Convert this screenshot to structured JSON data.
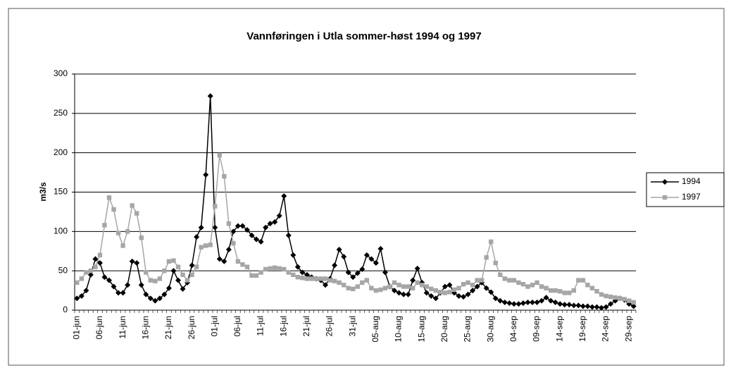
{
  "chart_data": {
    "type": "line",
    "title": "Vannføringen i Utla sommer-høst 1994 og 1997",
    "y_label": "m3/s",
    "categories": [
      "01-jun",
      null,
      null,
      null,
      null,
      "06-jun",
      null,
      null,
      null,
      null,
      "11-jun",
      null,
      null,
      null,
      null,
      "16-jun",
      null,
      null,
      null,
      null,
      "21-jun",
      null,
      null,
      null,
      null,
      "26-jun",
      null,
      null,
      null,
      null,
      "01-jul",
      null,
      null,
      null,
      null,
      "06-jul",
      null,
      null,
      null,
      null,
      "11-jul",
      null,
      null,
      null,
      null,
      "16-jul",
      null,
      null,
      null,
      null,
      "21-jul",
      null,
      null,
      null,
      null,
      "26-jul",
      null,
      null,
      null,
      null,
      "31-jul",
      null,
      null,
      null,
      null,
      "05-aug",
      null,
      null,
      null,
      null,
      "10-aug",
      null,
      null,
      null,
      null,
      "15-aug",
      null,
      null,
      null,
      null,
      "20-aug",
      null,
      null,
      null,
      null,
      "25-aug",
      null,
      null,
      null,
      null,
      "30-aug",
      null,
      null,
      null,
      null,
      "04-sep",
      null,
      null,
      null,
      null,
      "09-sep",
      null,
      null,
      null,
      null,
      "14-sep",
      null,
      null,
      null,
      null,
      "19-sep",
      null,
      null,
      null,
      null,
      "24-sep",
      null,
      null,
      null,
      null,
      "29-sep",
      null
    ],
    "series": [
      {
        "name": "1994",
        "color": "#000000",
        "marker": "diamond",
        "values": [
          15,
          18,
          25,
          45,
          65,
          60,
          42,
          38,
          30,
          22,
          22,
          32,
          62,
          60,
          32,
          20,
          15,
          12,
          15,
          20,
          28,
          50,
          38,
          27,
          35,
          57,
          93,
          105,
          172,
          272,
          105,
          65,
          62,
          77,
          100,
          107,
          107,
          102,
          95,
          90,
          87,
          105,
          110,
          112,
          120,
          145,
          95,
          70,
          55,
          48,
          45,
          42,
          40,
          38,
          32,
          40,
          57,
          77,
          68,
          48,
          42,
          47,
          52,
          70,
          65,
          60,
          78,
          48,
          30,
          25,
          22,
          20,
          20,
          38,
          53,
          35,
          22,
          18,
          15,
          22,
          30,
          32,
          22,
          18,
          17,
          20,
          25,
          30,
          35,
          28,
          23,
          15,
          12,
          10,
          9,
          8,
          8,
          9,
          10,
          10,
          10,
          12,
          16,
          12,
          10,
          8,
          7,
          7,
          6,
          6,
          5,
          5,
          4,
          4,
          3,
          4,
          8,
          12,
          15,
          13,
          8,
          5
        ]
      },
      {
        "name": "1997",
        "color": "#a6a6a6",
        "marker": "square",
        "values": [
          35,
          40,
          48,
          50,
          55,
          70,
          108,
          143,
          128,
          98,
          82,
          100,
          133,
          123,
          92,
          48,
          38,
          37,
          40,
          50,
          62,
          63,
          55,
          45,
          38,
          45,
          55,
          80,
          82,
          83,
          132,
          197,
          170,
          110,
          85,
          62,
          58,
          55,
          44,
          44,
          48,
          52,
          53,
          54,
          53,
          52,
          48,
          45,
          42,
          41,
          40,
          40,
          40,
          40,
          40,
          38,
          37,
          35,
          32,
          28,
          27,
          30,
          35,
          38,
          28,
          25,
          26,
          28,
          30,
          35,
          32,
          30,
          30,
          28,
          35,
          32,
          30,
          27,
          25,
          23,
          22,
          23,
          26,
          28,
          33,
          35,
          32,
          38,
          38,
          67,
          87,
          60,
          45,
          40,
          38,
          38,
          35,
          33,
          30,
          32,
          35,
          30,
          28,
          25,
          25,
          24,
          22,
          22,
          25,
          38,
          38,
          32,
          28,
          24,
          20,
          18,
          17,
          16,
          15,
          14,
          12,
          10
        ]
      }
    ],
    "ylim": [
      0,
      300
    ],
    "yticks": [
      0,
      50,
      100,
      150,
      200,
      250,
      300
    ],
    "grid": true,
    "legend": "right"
  }
}
